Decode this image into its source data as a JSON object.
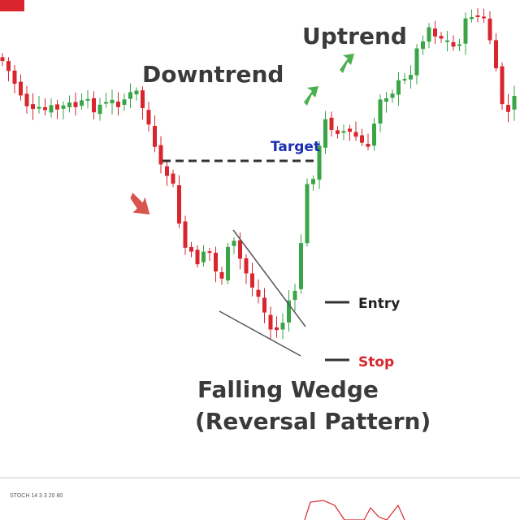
{
  "labels": {
    "downtrend": "Downtrend",
    "uptrend": "Uptrend",
    "target": "Target",
    "entry": "Entry",
    "stop": "Stop",
    "pattern": "Falling Wedge",
    "pattern_note": "(Reversal Pattern)",
    "indicator": "STOCH 14 3 3 20 80"
  }
}
